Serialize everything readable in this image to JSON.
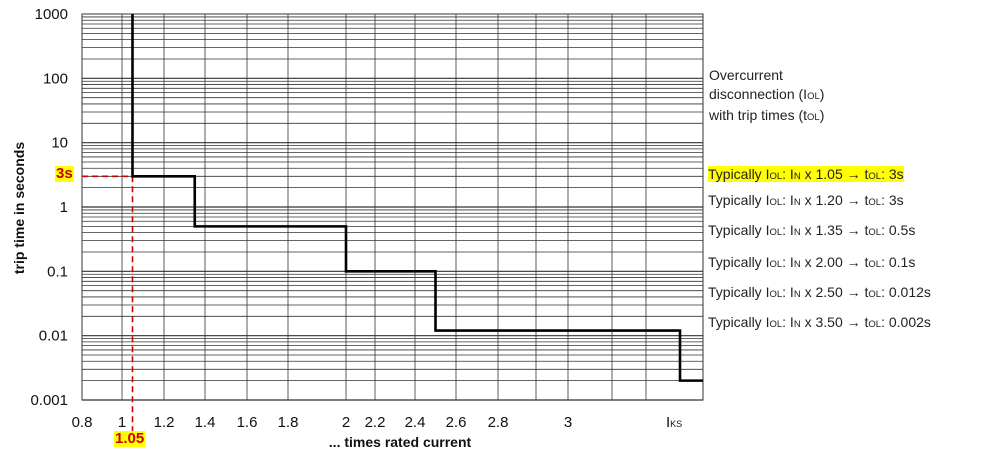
{
  "chart_data": {
    "type": "line",
    "ylabel": "trip time in seconds",
    "xlabel": "... times rated current",
    "y_scale": "log",
    "ylim": [
      0.001,
      1000
    ],
    "y_ticks": [
      "1000",
      "100",
      "10",
      "1",
      "0.1",
      "0.01",
      "0.001"
    ],
    "x_ticks": [
      "0.8",
      "1",
      "1.2",
      "1.4",
      "1.6",
      "1.8",
      "2",
      "2.2",
      "2.4",
      "2.6",
      "2.8",
      "3"
    ],
    "x_end_label": "I",
    "x_end_label_sub": "KS",
    "grid": true,
    "series": [
      {
        "x": [
          1.05,
          1.05,
          1.35,
          1.35,
          2.0,
          2.0,
          2.5,
          2.5,
          3.5,
          3.5,
          "IKS"
        ],
        "y": [
          1000,
          3,
          3,
          0.5,
          0.5,
          0.1,
          0.1,
          0.012,
          0.012,
          0.002,
          0.002
        ]
      }
    ],
    "marker": {
      "x_label": "1.05",
      "y_label": "3s",
      "x": 1.05,
      "y": 3,
      "color": "#cc0000"
    }
  },
  "legend": {
    "intro": {
      "line1": "Overcurrent",
      "line2_pre": "disconnection (I",
      "line2_sub": "OL",
      "line2_post": ")",
      "line3_pre": "with trip times (t",
      "line3_sub": "OL",
      "line3_post": ")"
    },
    "items": [
      {
        "pre": "Typically I",
        "sub1": "OL",
        "mid1": ": I",
        "sub2": "N",
        "mid2": " x 1.05 → t",
        "sub3": "OL",
        "post": ": 3s",
        "highlight": true
      },
      {
        "pre": "Typically I",
        "sub1": "OL",
        "mid1": ": I",
        "sub2": "N",
        "mid2": " x 1.20 → t",
        "sub3": "OL",
        "post": ": 3s",
        "highlight": false
      },
      {
        "pre": "Typically I",
        "sub1": "OL",
        "mid1": ": I",
        "sub2": "N",
        "mid2": " x 1.35 → t",
        "sub3": "OL",
        "post": ": 0.5s",
        "highlight": false
      },
      {
        "pre": "Typically I",
        "sub1": "OL",
        "mid1": ": I",
        "sub2": "N",
        "mid2": " x 2.00 → t",
        "sub3": "OL",
        "post": ": 0.1s",
        "highlight": false
      },
      {
        "pre": "Typically I",
        "sub1": "OL",
        "mid1": ": I",
        "sub2": "N",
        "mid2": " x 2.50 → t",
        "sub3": "OL",
        "post": ": 0.012s",
        "highlight": false
      },
      {
        "pre": "Typically I",
        "sub1": "OL",
        "mid1": ": I",
        "sub2": "N",
        "mid2": " x 3.50 → t",
        "sub3": "OL",
        "post": ": 0.002s",
        "highlight": false
      }
    ]
  },
  "colors": {
    "curve": "#000000",
    "grid": "#333333",
    "marker": "#cc0000",
    "highlight": "#ffff00"
  }
}
